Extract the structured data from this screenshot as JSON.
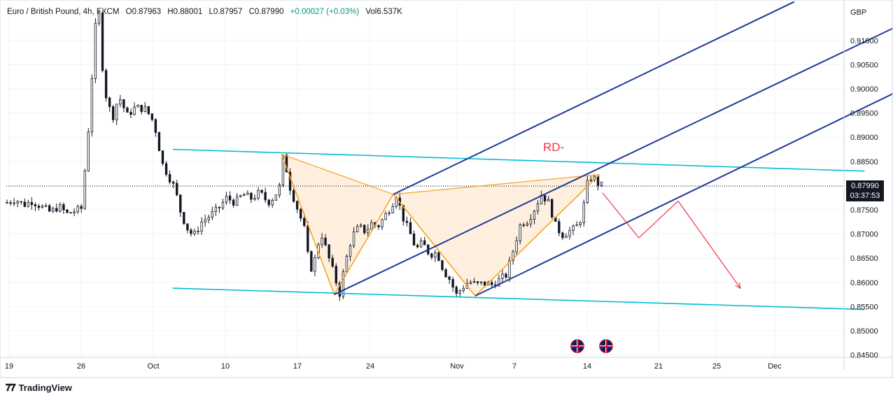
{
  "header": {
    "symbol": "Euro / British Pound, 4h, FXCM",
    "open": "O0.87963",
    "high": "H0.88001",
    "low": "L0.87957",
    "close": "C0.87990",
    "change": "+0.00027 (+0.03%)",
    "volume": "Vol6.537K"
  },
  "currency": "GBP",
  "last_price": {
    "price": "0.87990",
    "countdown": "03:37:53"
  },
  "annotation": "RD-",
  "brand": "TradingView",
  "colors": {
    "candle": "#131722",
    "channel": "#00bcd4",
    "pitchfork": "#1e3a9a",
    "pattern_line": "#f7a325",
    "pattern_fill": "#fde9d3",
    "projection": "#f23645"
  },
  "icons": {
    "events": "uk-flag-icon",
    "brand": "tradingview-logo-icon"
  },
  "chart_data": {
    "type": "candlestick",
    "interval": "4h",
    "ylim": [
      0.8445,
      0.9175
    ],
    "y_ticks": [
      "0.91000",
      "0.90500",
      "0.90000",
      "0.89500",
      "0.89000",
      "0.88500",
      "0.88000",
      "0.87500",
      "0.87000",
      "0.86500",
      "0.86000",
      "0.85500",
      "0.85000",
      "0.84500"
    ],
    "x_ticks": [
      "19",
      "26",
      "Oct",
      "10",
      "17",
      "24",
      "Nov",
      "7",
      "14",
      "21",
      "25",
      "Dec"
    ],
    "price_path": [
      [
        0,
        0.8765
      ],
      [
        0.8,
        0.8772
      ],
      [
        1.6,
        0.876
      ],
      [
        2.4,
        0.8768
      ],
      [
        3.2,
        0.8758
      ],
      [
        4.2,
        0.8745
      ],
      [
        5.0,
        0.8757
      ],
      [
        5.8,
        0.8742
      ],
      [
        6.6,
        0.8748
      ],
      [
        7.2,
        0.8753
      ],
      [
        8.0,
        0.895
      ],
      [
        8.4,
        0.91
      ],
      [
        8.8,
        0.918
      ],
      [
        9.2,
        0.905
      ],
      [
        9.6,
        0.898
      ],
      [
        10.2,
        0.894
      ],
      [
        10.8,
        0.8985
      ],
      [
        11.6,
        0.8945
      ],
      [
        12.4,
        0.8962
      ],
      [
        13.4,
        0.8958
      ],
      [
        14.2,
        0.893
      ],
      [
        15.0,
        0.8845
      ],
      [
        15.6,
        0.882
      ],
      [
        16.2,
        0.8795
      ],
      [
        16.8,
        0.8742
      ],
      [
        17.4,
        0.8712
      ],
      [
        18.0,
        0.8695
      ],
      [
        18.8,
        0.8725
      ],
      [
        19.6,
        0.8738
      ],
      [
        20.4,
        0.8752
      ],
      [
        21.2,
        0.8775
      ],
      [
        22.0,
        0.8765
      ],
      [
        22.8,
        0.8782
      ],
      [
        23.6,
        0.8773
      ],
      [
        24.4,
        0.8786
      ],
      [
        25.2,
        0.8765
      ],
      [
        25.8,
        0.8777
      ],
      [
        26.3,
        0.8796
      ],
      [
        26.7,
        0.8865
      ],
      [
        27.3,
        0.8798
      ],
      [
        28.0,
        0.8755
      ],
      [
        28.8,
        0.8705
      ],
      [
        29.2,
        0.8625
      ],
      [
        29.6,
        0.8635
      ],
      [
        30.3,
        0.8705
      ],
      [
        31.0,
        0.8655
      ],
      [
        31.6,
        0.8615
      ],
      [
        32.1,
        0.8575
      ],
      [
        32.6,
        0.8635
      ],
      [
        33.3,
        0.8695
      ],
      [
        34.0,
        0.8715
      ],
      [
        34.6,
        0.8705
      ],
      [
        35.2,
        0.8722
      ],
      [
        35.8,
        0.8715
      ],
      [
        36.5,
        0.8738
      ],
      [
        37.1,
        0.8758
      ],
      [
        37.6,
        0.8782
      ],
      [
        38.2,
        0.8735
      ],
      [
        38.9,
        0.8702
      ],
      [
        39.5,
        0.8668
      ],
      [
        40.1,
        0.8682
      ],
      [
        40.8,
        0.8658
      ],
      [
        41.5,
        0.8662
      ],
      [
        42.2,
        0.8622
      ],
      [
        42.9,
        0.8602
      ],
      [
        43.3,
        0.8572
      ],
      [
        43.9,
        0.8588
      ],
      [
        44.6,
        0.8602
      ],
      [
        45.3,
        0.8595
      ],
      [
        46.0,
        0.8598
      ],
      [
        46.8,
        0.8595
      ],
      [
        47.5,
        0.8605
      ],
      [
        48.2,
        0.8615
      ],
      [
        48.9,
        0.8668
      ],
      [
        49.6,
        0.8722
      ],
      [
        50.3,
        0.8728
      ],
      [
        51.0,
        0.8755
      ],
      [
        51.6,
        0.8782
      ],
      [
        52.3,
        0.8765
      ],
      [
        53.0,
        0.8715
      ],
      [
        53.6,
        0.8698
      ],
      [
        54.2,
        0.8705
      ],
      [
        54.9,
        0.8712
      ],
      [
        55.5,
        0.8735
      ],
      [
        56.0,
        0.8802
      ],
      [
        56.5,
        0.8822
      ],
      [
        57.0,
        0.8805
      ],
      [
        57.5,
        0.8799
      ]
    ],
    "harmonic_pattern": {
      "X": [
        26.5,
        0.8865
      ],
      "A": [
        31.6,
        0.8575
      ],
      "B": [
        37.3,
        0.8782
      ],
      "C": [
        45.2,
        0.8572
      ],
      "D": [
        57.2,
        0.8823
      ]
    },
    "channel": {
      "upper": [
        [
          16,
          0.8875
        ],
        [
          82.8,
          0.883
        ]
      ],
      "lower": [
        [
          16,
          0.8588
        ],
        [
          82.8,
          0.8544
        ]
      ]
    },
    "pitchfork": {
      "upper": [
        [
          37.3,
          0.8782
        ],
        [
          76,
          0.918
        ]
      ],
      "median": [
        [
          31.6,
          0.8575
        ],
        [
          86.5,
          0.9135
        ]
      ],
      "lower": [
        [
          45.2,
          0.8572
        ],
        [
          86.5,
          0.9
        ]
      ]
    },
    "projection": [
      [
        57.5,
        0.8785
      ],
      [
        61.0,
        0.8692
      ],
      [
        64.8,
        0.8768
      ],
      [
        70.8,
        0.8588
      ]
    ]
  }
}
